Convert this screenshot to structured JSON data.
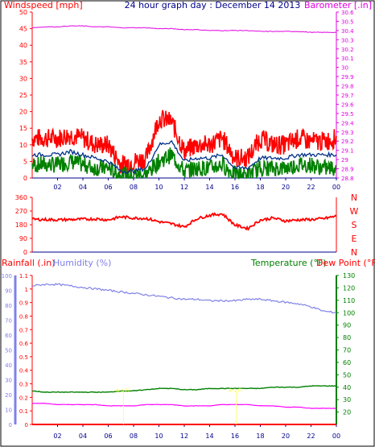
{
  "header": {
    "left_title": "Windspeed [mph]",
    "center_title": "24 hour graph day : December 14 2013",
    "right_title": "Barometer [.in]"
  },
  "colors": {
    "windspeed": "#ff0000",
    "gust": "#ff0000",
    "avg_wind": "#008000",
    "avg_line": "#00308a",
    "barometer": "#e000e0",
    "direction": "#ff0000",
    "humidity": "#8080e8",
    "temperature": "#008000",
    "dewpoint": "#ff00ff",
    "rainfall": "#ff0000",
    "axis_dark": "#00008b",
    "background": "#ffffff"
  },
  "chart_data": [
    {
      "id": "wind",
      "type": "line",
      "title": "Windspeed [mph]",
      "right_label": "Barometer [.in]",
      "xlabel": "",
      "x_ticks": [
        "02",
        "04",
        "06",
        "08",
        "10",
        "12",
        "14",
        "16",
        "18",
        "20",
        "22",
        "00"
      ],
      "ylim": [
        0,
        50
      ],
      "y_ticks": [
        0,
        5,
        10,
        15,
        20,
        25,
        30,
        35,
        40,
        45,
        50
      ],
      "y2lim": [
        28.8,
        30.6
      ],
      "y2_ticks": [
        "28.8",
        "28.9",
        "29",
        "29.1",
        "29.2",
        "29.3",
        "29.4",
        "29.5",
        "29.6",
        "29.7",
        "29.8",
        "29.9",
        "30",
        "30.1",
        "30.2",
        "30.3",
        "30.4",
        "30.5",
        "30.6"
      ],
      "x": [
        0,
        1,
        2,
        3,
        4,
        5,
        6,
        7,
        8,
        9,
        10,
        11,
        12,
        13,
        14,
        15,
        16,
        17,
        18,
        19,
        20,
        21,
        22,
        23,
        24
      ],
      "series": [
        {
          "key": "gust",
          "values": [
            12,
            12,
            12,
            13,
            12,
            10,
            10,
            4,
            5,
            6,
            18,
            17,
            8,
            10,
            10,
            12,
            6,
            6,
            12,
            10,
            10,
            12,
            11,
            11,
            12
          ]
        },
        {
          "key": "wind",
          "values": [
            7,
            7,
            7,
            8,
            7,
            6,
            5,
            2,
            2,
            3,
            10,
            11,
            5,
            6,
            6,
            7,
            3,
            3,
            6,
            6,
            6,
            7,
            7,
            7,
            7
          ]
        },
        {
          "key": "avg",
          "values": [
            4,
            4,
            4,
            5,
            4,
            3,
            3,
            1,
            1,
            1,
            5,
            7,
            2,
            3,
            3,
            4,
            1,
            1,
            3,
            3,
            3,
            4,
            4,
            3,
            3
          ]
        },
        {
          "key": "barometer",
          "values": [
            30.43,
            30.44,
            30.44,
            30.45,
            30.45,
            30.44,
            30.44,
            30.43,
            30.43,
            30.43,
            30.42,
            30.42,
            30.41,
            30.41,
            30.4,
            30.4,
            30.4,
            30.4,
            30.39,
            30.39,
            30.39,
            30.39,
            30.38,
            30.38,
            30.38
          ]
        }
      ]
    },
    {
      "id": "direction",
      "type": "line",
      "title": "",
      "x_ticks": [],
      "ylim": [
        0,
        360
      ],
      "y_ticks": [
        0,
        90,
        180,
        270,
        360
      ],
      "compass": [
        "N",
        "W",
        "S",
        "E",
        "N"
      ],
      "x": [
        0,
        1,
        2,
        3,
        4,
        5,
        6,
        7,
        8,
        9,
        10,
        11,
        12,
        13,
        14,
        15,
        16,
        17,
        18,
        19,
        20,
        21,
        22,
        23,
        24
      ],
      "series": [
        {
          "key": "direction",
          "values": [
            215,
            214,
            212,
            214,
            216,
            218,
            212,
            232,
            224,
            222,
            200,
            186,
            166,
            220,
            242,
            252,
            178,
            155,
            210,
            224,
            205,
            212,
            214,
            220,
            236
          ]
        }
      ]
    },
    {
      "id": "climate",
      "type": "line",
      "left_titles": [
        "Rainfall (.in)",
        "Humidity (%)"
      ],
      "right_titles": [
        "Temperature (°F)",
        "Dew Point (°F)"
      ],
      "x_ticks": [
        "02",
        "04",
        "06",
        "08",
        "10",
        "12",
        "14",
        "16",
        "18",
        "20",
        "22",
        "00"
      ],
      "rain_lim": [
        0,
        1.1
      ],
      "rain_ticks": [
        "0",
        "0.1",
        "0.2",
        "0.3",
        "0.4",
        "0.5",
        "0.6",
        "0.7",
        "0.8",
        "0.9",
        "1",
        "1.1"
      ],
      "hum_lim": [
        0,
        100
      ],
      "hum_ticks": [
        0,
        10,
        20,
        30,
        40,
        50,
        60,
        70,
        80,
        90,
        100
      ],
      "temp_lim": [
        10,
        130
      ],
      "temp_ticks": [
        20,
        30,
        40,
        50,
        60,
        70,
        80,
        90,
        100,
        110,
        120,
        130
      ],
      "x": [
        0,
        1,
        2,
        3,
        4,
        5,
        6,
        7,
        8,
        9,
        10,
        11,
        12,
        13,
        14,
        15,
        16,
        17,
        18,
        19,
        20,
        21,
        22,
        23,
        24
      ],
      "series": [
        {
          "key": "humidity",
          "values": [
            93,
            94,
            94,
            93,
            92,
            91,
            90,
            89,
            88,
            87,
            86,
            85,
            84,
            84,
            83,
            83,
            83,
            84,
            84,
            83,
            82,
            81,
            79,
            76,
            75
          ]
        },
        {
          "key": "temperature",
          "values": [
            37,
            36,
            36,
            36,
            36,
            36,
            36,
            37,
            37,
            38,
            39,
            39,
            38,
            38,
            39,
            39,
            39,
            39,
            39,
            40,
            40,
            40,
            41,
            41,
            41
          ]
        },
        {
          "key": "dewpoint",
          "values": [
            27,
            27,
            26,
            26,
            26,
            26,
            25,
            25,
            25,
            26,
            26,
            26,
            25,
            25,
            25,
            26,
            26,
            26,
            25,
            25,
            24,
            24,
            23,
            23,
            23
          ]
        },
        {
          "key": "rainfall",
          "values": [
            0,
            0,
            0,
            0,
            0,
            0,
            0,
            0,
            0,
            0,
            0,
            0,
            0,
            0,
            0,
            0,
            0,
            0,
            0,
            0,
            0,
            0,
            0,
            0,
            0
          ]
        }
      ],
      "markers": [
        {
          "hour": 7.2,
          "label": "-8.1 Fl"
        },
        {
          "hour": 16.1,
          "label": "-8.1 Fl"
        }
      ]
    }
  ]
}
